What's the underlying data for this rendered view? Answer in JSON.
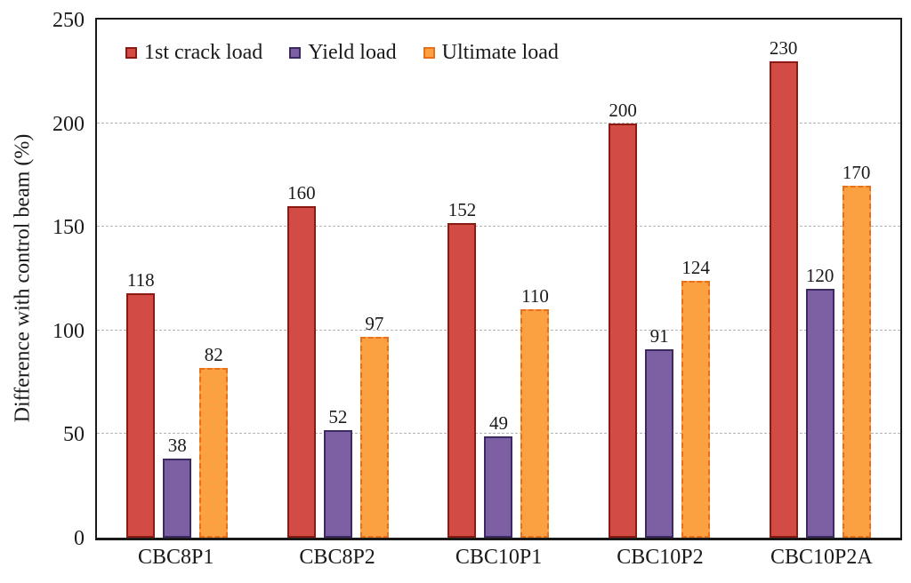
{
  "chart_data": {
    "type": "bar",
    "title": "",
    "xlabel": "",
    "ylabel": "Difference with control beam (%)",
    "categories": [
      "CBC8P1",
      "CBC8P2",
      "CBC10P1",
      "CBC10P2",
      "CBC10P2A"
    ],
    "series": [
      {
        "name": "1st crack load",
        "values": [
          118,
          160,
          152,
          200,
          230
        ],
        "fill": "#D24B45",
        "border": "#8B1A13",
        "border_style": "solid"
      },
      {
        "name": "Yield load",
        "values": [
          38,
          52,
          49,
          91,
          120
        ],
        "fill": "#7D60A3",
        "border": "#3E2A63",
        "border_style": "solid"
      },
      {
        "name": "Ultimate load",
        "values": [
          82,
          97,
          110,
          124,
          170
        ],
        "fill": "#FBA142",
        "border": "#E8701A",
        "border_style": "dashed"
      }
    ],
    "ylim": [
      0,
      250
    ],
    "yticks": [
      0,
      50,
      100,
      150,
      200,
      250
    ],
    "grid": true,
    "gridline_color": "#B3B3B3",
    "gridline_style": "dashed",
    "axis_color": "#1A1A1A",
    "legend_position": "top-left-inside",
    "background": "#FFFFFF"
  }
}
